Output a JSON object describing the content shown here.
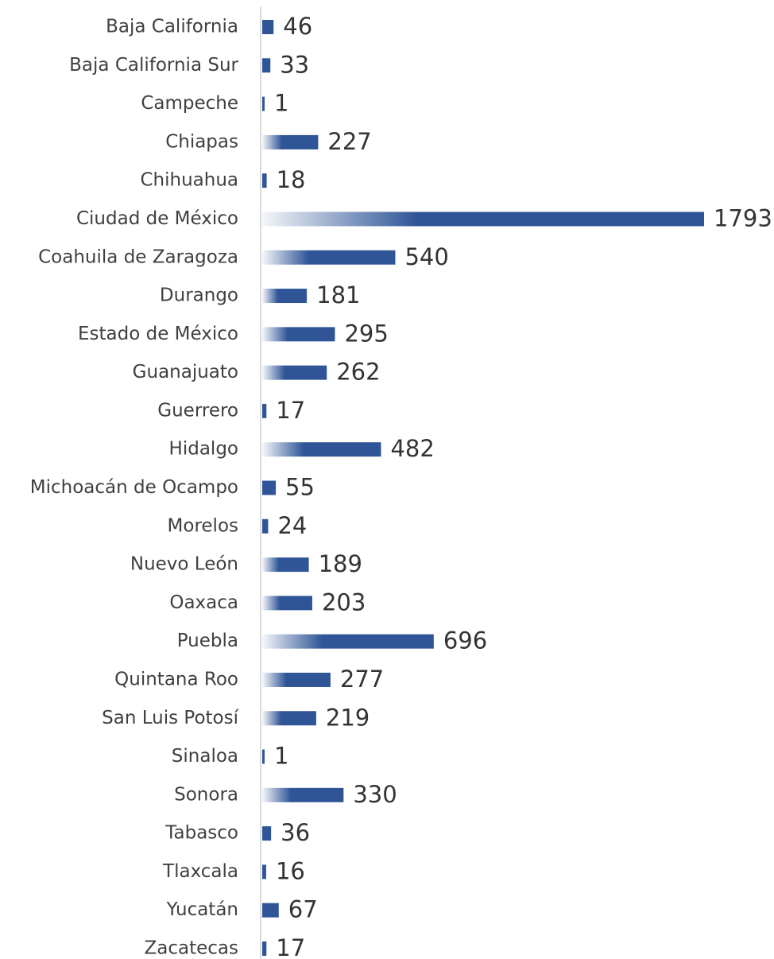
{
  "chart_data": {
    "type": "bar",
    "orientation": "horizontal",
    "categories": [
      "Baja California",
      "Baja California Sur",
      "Campeche",
      "Chiapas",
      "Chihuahua",
      "Ciudad de México",
      "Coahuila de Zaragoza",
      "Durango",
      "Estado de México",
      "Guanajuato",
      "Guerrero",
      "Hidalgo",
      "Michoacán de Ocampo",
      "Morelos",
      "Nuevo León",
      "Oaxaca",
      "Puebla",
      "Quintana Roo",
      "San Luis Potosí",
      "Sinaloa",
      "Sonora",
      "Tabasco",
      "Tlaxcala",
      "Yucatán",
      "Zacatecas"
    ],
    "values": [
      46,
      33,
      1,
      227,
      18,
      1793,
      540,
      181,
      295,
      262,
      17,
      482,
      55,
      24,
      189,
      203,
      696,
      277,
      219,
      1,
      330,
      36,
      16,
      67,
      17
    ],
    "color": "#2f5597"
  }
}
